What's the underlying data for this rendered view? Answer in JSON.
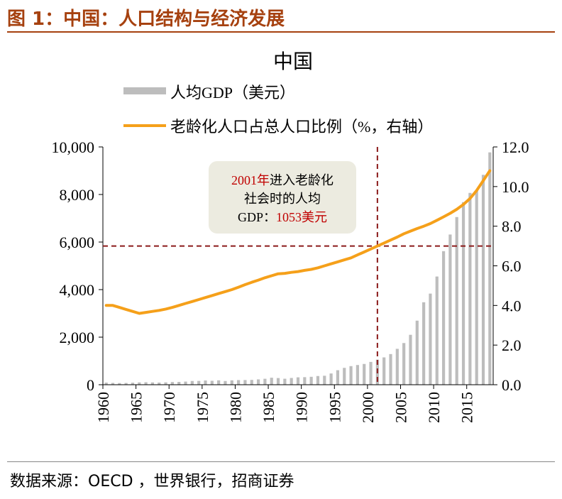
{
  "figure_title": "图 1：中国：人口结构与经济发展",
  "source": "数据来源：OECD ，世界银行，招商证券",
  "chart_data": {
    "type": "bar+line",
    "title": "中国",
    "legend_position": "top",
    "colors": {
      "bars": "#bdbdbd",
      "line": "#f5a01a",
      "ref_line": "#8b1a1a",
      "highlight": "#c00000",
      "callout_bg": "#ecebe0"
    },
    "x": [
      1960,
      1961,
      1962,
      1963,
      1964,
      1965,
      1966,
      1967,
      1968,
      1969,
      1970,
      1971,
      1972,
      1973,
      1974,
      1975,
      1976,
      1977,
      1978,
      1979,
      1980,
      1981,
      1982,
      1983,
      1984,
      1985,
      1986,
      1987,
      1988,
      1989,
      1990,
      1991,
      1992,
      1993,
      1994,
      1995,
      1996,
      1997,
      1998,
      1999,
      2000,
      2001,
      2002,
      2003,
      2004,
      2005,
      2006,
      2007,
      2008,
      2009,
      2010,
      2011,
      2012,
      2013,
      2014,
      2015,
      2016,
      2017,
      2018
    ],
    "x_ticks": [
      "1960",
      "1965",
      "1970",
      "1975",
      "1980",
      "1985",
      "1990",
      "1995",
      "2000",
      "2005",
      "2010",
      "2015"
    ],
    "y_left": {
      "range": [
        0,
        10000
      ],
      "ticks": [
        "0",
        "2,000",
        "4,000",
        "6,000",
        "8,000",
        "10,000"
      ]
    },
    "y_right": {
      "range": [
        0,
        12
      ],
      "ticks": [
        "0.0",
        "2.0",
        "4.0",
        "6.0",
        "8.0",
        "10.0",
        "12.0"
      ]
    },
    "grid": false,
    "series": [
      {
        "name": "人均GDP（美元）",
        "kind": "bar",
        "axis": "left",
        "values": [
          90,
          76,
          70,
          74,
          85,
          98,
          104,
          97,
          91,
          100,
          113,
          119,
          132,
          157,
          160,
          178,
          165,
          185,
          156,
          184,
          195,
          197,
          203,
          225,
          250,
          294,
          281,
          252,
          284,
          311,
          318,
          333,
          366,
          377,
          473,
          610,
          709,
          782,
          829,
          873,
          959,
          1053,
          1149,
          1289,
          1509,
          1753,
          2099,
          2694,
          3468,
          3832,
          4550,
          5618,
          6317,
          7051,
          7679,
          8067,
          8148,
          8827,
          9771
        ]
      },
      {
        "name": "老龄化人口占总人口比例（%，右轴）",
        "kind": "line",
        "axis": "right",
        "values": [
          4.0,
          4.0,
          3.9,
          3.8,
          3.7,
          3.6,
          3.65,
          3.7,
          3.75,
          3.82,
          3.9,
          4.0,
          4.1,
          4.2,
          4.3,
          4.4,
          4.5,
          4.6,
          4.7,
          4.8,
          4.92,
          5.05,
          5.17,
          5.28,
          5.4,
          5.5,
          5.6,
          5.62,
          5.67,
          5.71,
          5.77,
          5.82,
          5.9,
          6.0,
          6.1,
          6.2,
          6.3,
          6.4,
          6.55,
          6.7,
          6.85,
          7.0,
          7.15,
          7.3,
          7.45,
          7.62,
          7.75,
          7.88,
          8.0,
          8.13,
          8.3,
          8.47,
          8.65,
          8.85,
          9.1,
          9.4,
          9.8,
          10.3,
          10.8
        ]
      }
    ],
    "reference": {
      "x": 2001,
      "y_right": 7.0
    },
    "annotation": {
      "line1_red": "2001年",
      "line1_black": "进入老龄化",
      "line2": "社会时的人均",
      "line3_black": "GDP：",
      "line3_red": "1053美元"
    }
  }
}
